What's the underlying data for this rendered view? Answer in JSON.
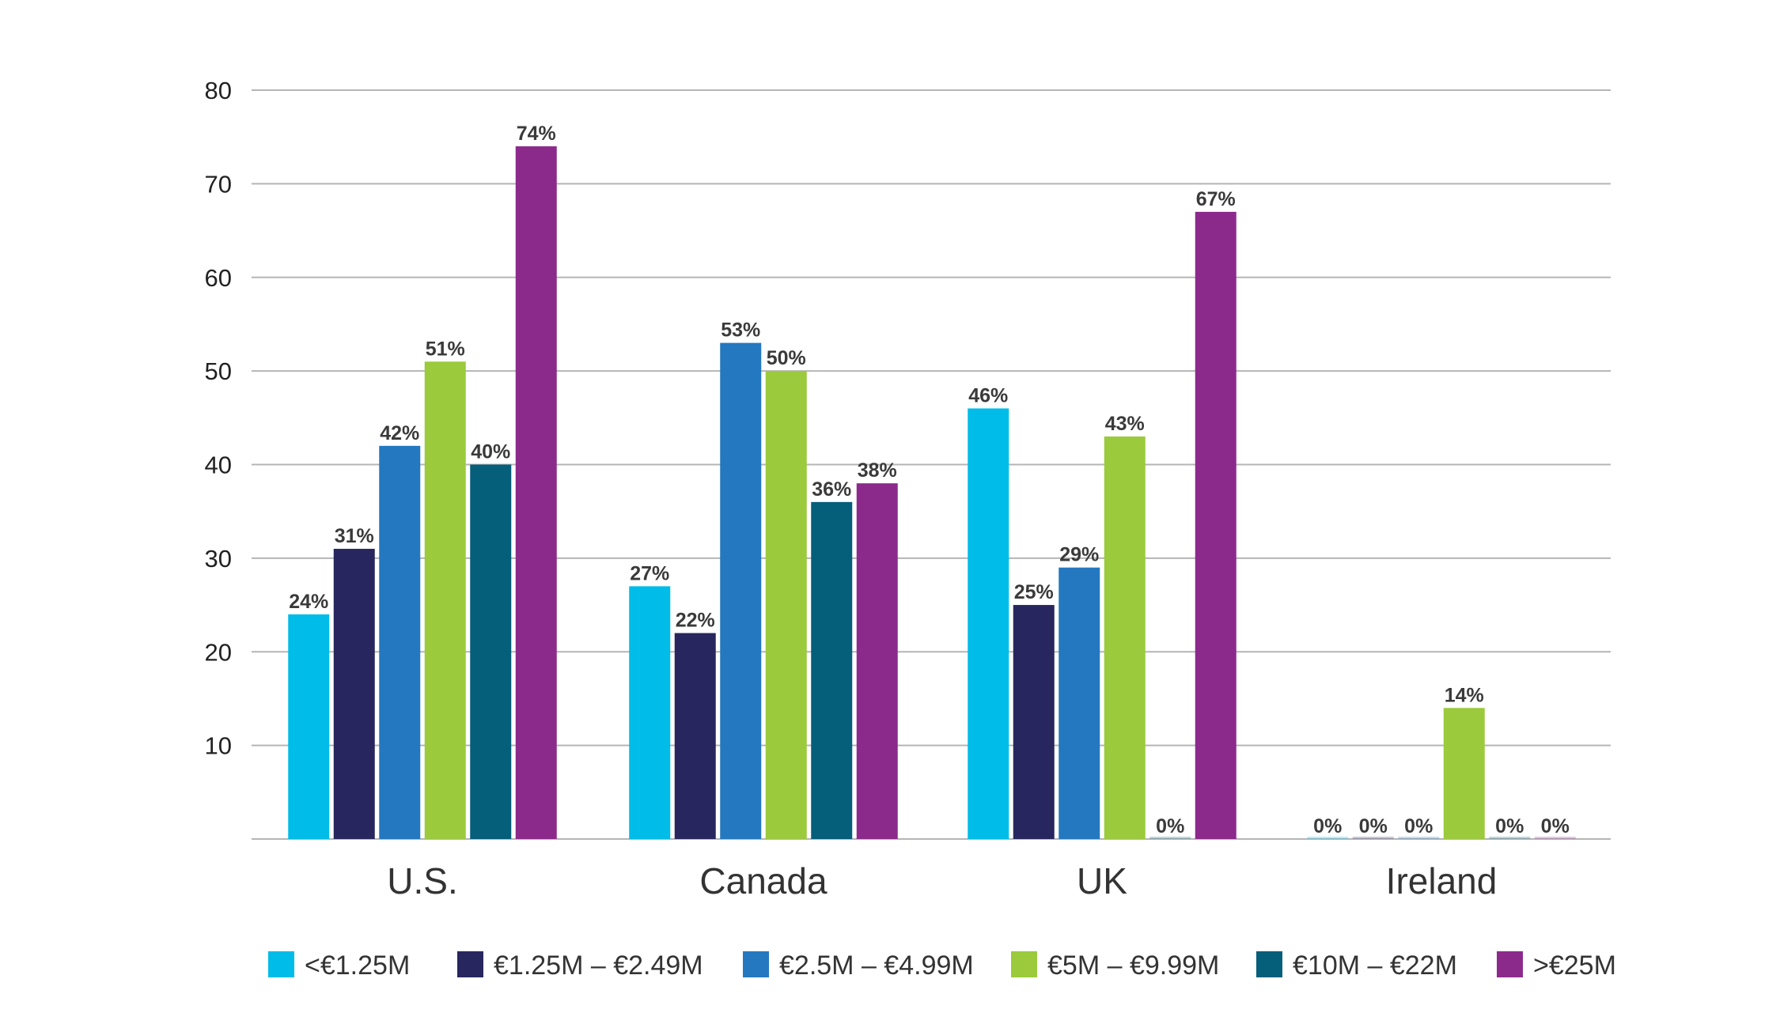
{
  "chart_data": {
    "type": "bar",
    "title": "",
    "xlabel": "",
    "ylabel": "",
    "ylim": [
      0,
      80
    ],
    "yticks": [
      10,
      20,
      30,
      40,
      50,
      60,
      70,
      80
    ],
    "grid": true,
    "legend_position": "bottom",
    "categories": [
      "U.S.",
      "Canada",
      "UK",
      "Ireland"
    ],
    "series": [
      {
        "name": "<€1.25M",
        "color": "#00BCE8",
        "values": [
          24,
          27,
          46,
          0
        ],
        "labels": [
          "24%",
          "27%",
          "46%",
          "0%"
        ]
      },
      {
        "name": "€1.25M – €2.49M",
        "color": "#27265E",
        "values": [
          31,
          22,
          25,
          0
        ],
        "labels": [
          "31%",
          "22%",
          "25%",
          "0%"
        ]
      },
      {
        "name": "€2.5M – €4.99M",
        "color": "#2478C0",
        "values": [
          42,
          53,
          29,
          0
        ],
        "labels": [
          "42%",
          "53%",
          "29%",
          "0%"
        ]
      },
      {
        "name": "€5M – €9.99M",
        "color": "#9BCA3C",
        "values": [
          51,
          50,
          43,
          14
        ],
        "labels": [
          "51%",
          "50%",
          "43%",
          "14%"
        ]
      },
      {
        "name": "€10M – €22M",
        "color": "#055E7A",
        "values": [
          40,
          36,
          0,
          0
        ],
        "labels": [
          "40%",
          "36%",
          "0%",
          "0%"
        ]
      },
      {
        "name": ">€25M",
        "color": "#8C2A8C",
        "values": [
          74,
          38,
          67,
          0
        ],
        "labels": [
          "74%",
          "38%",
          "67%",
          "0%"
        ]
      }
    ]
  }
}
